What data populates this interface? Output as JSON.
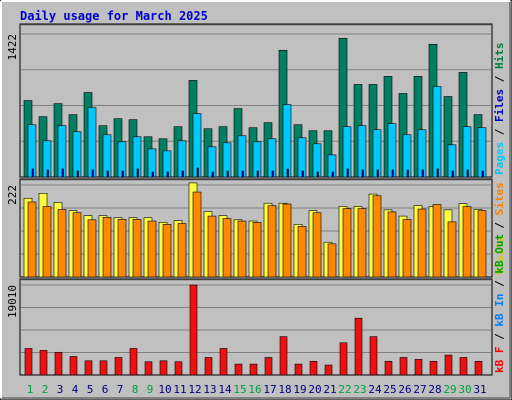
{
  "chart_data": {
    "type": "bar",
    "title": "Daily usage for March 2025",
    "categories": [
      "1",
      "2",
      "3",
      "4",
      "5",
      "6",
      "7",
      "8",
      "9",
      "10",
      "11",
      "12",
      "13",
      "14",
      "15",
      "16",
      "17",
      "18",
      "19",
      "20",
      "21",
      "22",
      "23",
      "24",
      "25",
      "26",
      "27",
      "28",
      "29",
      "30",
      "31"
    ],
    "weekend_days": [
      "1",
      "2",
      "8",
      "9",
      "15",
      "16",
      "22",
      "23",
      "29",
      "30"
    ],
    "grid": true,
    "panels": [
      {
        "id": "hits",
        "ytick": "1422",
        "ymax": 1422,
        "right_label": [
          {
            "text": "Pages",
            "color": "#00c8ff"
          },
          {
            "text": " / ",
            "color": "#000000"
          },
          {
            "text": "Files",
            "color": "#0000cc"
          },
          {
            "text": " / ",
            "color": "#000000"
          },
          {
            "text": "Hits",
            "color": "#008040"
          }
        ],
        "series": [
          {
            "name": "Hits",
            "color": "#008060",
            "values": [
              760,
              600,
              730,
              620,
              840,
              510,
              580,
              570,
              400,
              380,
              500,
              960,
              480,
              500,
              680,
              490,
              540,
              1260,
              520,
              460,
              460,
              1380,
              920,
              920,
              1000,
              830,
              1000,
              1320,
              800,
              1040,
              620
            ]
          },
          {
            "name": "Files",
            "color": "#0000cc",
            "values": [
              80,
              70,
              80,
              60,
              70,
              60,
              60,
              80,
              50,
              50,
              60,
              90,
              50,
              60,
              60,
              60,
              60,
              80,
              60,
              50,
              50,
              80,
              70,
              70,
              70,
              70,
              70,
              80,
              60,
              70,
              60
            ]
          },
          {
            "name": "Pages",
            "color": "#00c8ff",
            "values": [
              520,
              360,
              510,
              450,
              690,
              420,
              350,
              400,
              280,
              260,
              360,
              630,
              300,
              340,
              410,
              350,
              380,
              720,
              390,
              330,
              220,
              500,
              510,
              470,
              530,
              420,
              470,
              900,
              320,
              500,
              490
            ]
          }
        ]
      },
      {
        "id": "visits",
        "ytick": "222",
        "ymax": 222,
        "right_label": [
          {
            "text": "Visits",
            "color": "#cccc00"
          },
          {
            "text": " / ",
            "color": "#000000"
          },
          {
            "text": "Sites",
            "color": "#ff8000"
          }
        ],
        "series": [
          {
            "name": "Visits",
            "color": "#ffff40",
            "values": [
              190,
              202,
              180,
              160,
              148,
              148,
              143,
              143,
              143,
              132,
              136,
              227,
              158,
              148,
              138,
              135,
              178,
              178,
              127,
              160,
              84,
              170,
              170,
              200,
              162,
              147,
              172,
              170,
              162,
              177,
              163
            ]
          },
          {
            "name": "Sites",
            "color": "#ff8800",
            "values": [
              181,
              170,
              163,
              155,
              138,
              144,
              139,
              139,
              135,
              127,
              129,
              205,
              147,
              141,
              135,
              132,
              172,
              176,
              122,
              155,
              80,
              165,
              165,
              196,
              157,
              139,
              164,
              175,
              133,
              170,
              160
            ]
          }
        ]
      },
      {
        "id": "kbytes",
        "ytick": "19010",
        "ymax": 19010,
        "right_label": [
          {
            "text": "kB F",
            "color": "#ff0000"
          },
          {
            "text": " / ",
            "color": "#000000"
          },
          {
            "text": "kB In",
            "color": "#0080ff"
          },
          {
            "text": " / ",
            "color": "#000000"
          },
          {
            "text": "kB Out",
            "color": "#00a000"
          }
        ],
        "series": [
          {
            "name": "kB F",
            "color": "#ee1111",
            "values": [
              5600,
              5200,
              4800,
              3900,
              3000,
              3000,
              3700,
              5600,
              2800,
              3000,
              2800,
              19010,
              3700,
              5600,
              2300,
              2300,
              3700,
              8100,
              2300,
              2900,
              2100,
              6800,
              12000,
              8100,
              2900,
              3700,
              3300,
              2900,
              4200,
              3700,
              2900
            ]
          }
        ]
      }
    ]
  }
}
